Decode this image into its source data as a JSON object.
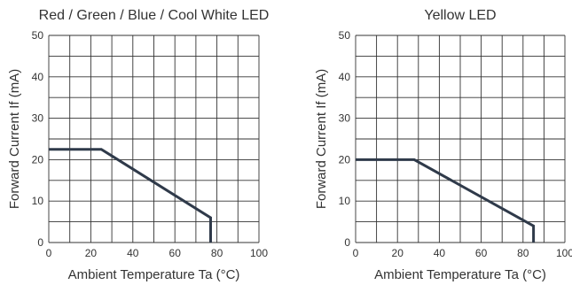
{
  "chart_data": [
    {
      "type": "line",
      "title": "Red / Green / Blue / Cool White LED",
      "xlabel": "Ambient Temperature Ta (°C)",
      "ylabel": "Forward Current If (mA)",
      "xlim": [
        0,
        100
      ],
      "ylim": [
        0,
        50
      ],
      "xticks": [
        0,
        20,
        40,
        60,
        80,
        100
      ],
      "yticks": [
        0,
        10,
        20,
        30,
        40,
        50
      ],
      "grid": true,
      "series": [
        {
          "x": [
            0,
            25,
            77,
            77
          ],
          "y": [
            22.5,
            22.5,
            6,
            0
          ]
        }
      ]
    },
    {
      "type": "line",
      "title": "Yellow LED",
      "xlabel": "Ambient Temperature Ta (°C)",
      "ylabel": "Forward Current If (mA)",
      "xlim": [
        0,
        100
      ],
      "ylim": [
        0,
        50
      ],
      "xticks": [
        0,
        20,
        40,
        60,
        80,
        100
      ],
      "yticks": [
        0,
        10,
        20,
        30,
        40,
        50
      ],
      "grid": true,
      "series": [
        {
          "x": [
            0,
            28,
            85,
            85
          ],
          "y": [
            20,
            20,
            4,
            0
          ]
        }
      ]
    }
  ],
  "style": {
    "line_color": "#2f3a4a",
    "grid_color": "#333333",
    "text_color": "#333333"
  }
}
